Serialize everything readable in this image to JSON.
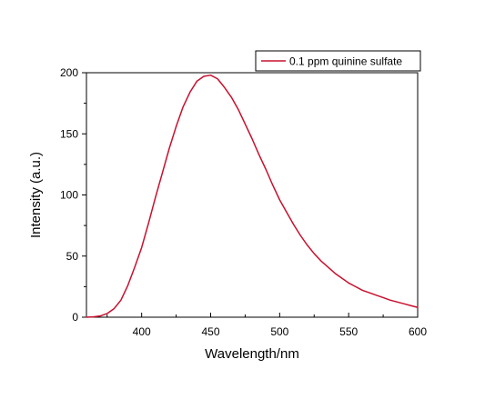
{
  "chart_data": {
    "type": "line",
    "title": "",
    "xlabel": "Wavelength/nm",
    "ylabel": "Intensity (a.u.)",
    "xlim": [
      360,
      600
    ],
    "ylim": [
      0,
      200
    ],
    "x_ticks": [
      400,
      450,
      500,
      550,
      600
    ],
    "y_ticks": [
      0,
      50,
      100,
      150,
      200
    ],
    "grid": false,
    "legend_position": "top-right",
    "series": [
      {
        "name": "0.1 ppm quinine sulfate",
        "color": "#c8102e",
        "x": [
          360,
          365,
          370,
          375,
          380,
          385,
          390,
          395,
          400,
          405,
          410,
          415,
          420,
          425,
          430,
          435,
          440,
          445,
          450,
          455,
          460,
          465,
          470,
          475,
          480,
          485,
          490,
          495,
          500,
          505,
          510,
          515,
          520,
          525,
          530,
          535,
          540,
          545,
          550,
          555,
          560,
          565,
          570,
          575,
          580,
          585,
          590,
          595,
          600
        ],
        "y": [
          0,
          0.3,
          1,
          3,
          7,
          14,
          26,
          41,
          57,
          77,
          98,
          118,
          138,
          156,
          172,
          184,
          193,
          197,
          198,
          195,
          188,
          180,
          170,
          158,
          146,
          133,
          121,
          108,
          96,
          86,
          76,
          67,
          59,
          52,
          46,
          41,
          36,
          32,
          28,
          25,
          22,
          20,
          18,
          16,
          14,
          12.5,
          11,
          9.5,
          8
        ]
      }
    ]
  }
}
